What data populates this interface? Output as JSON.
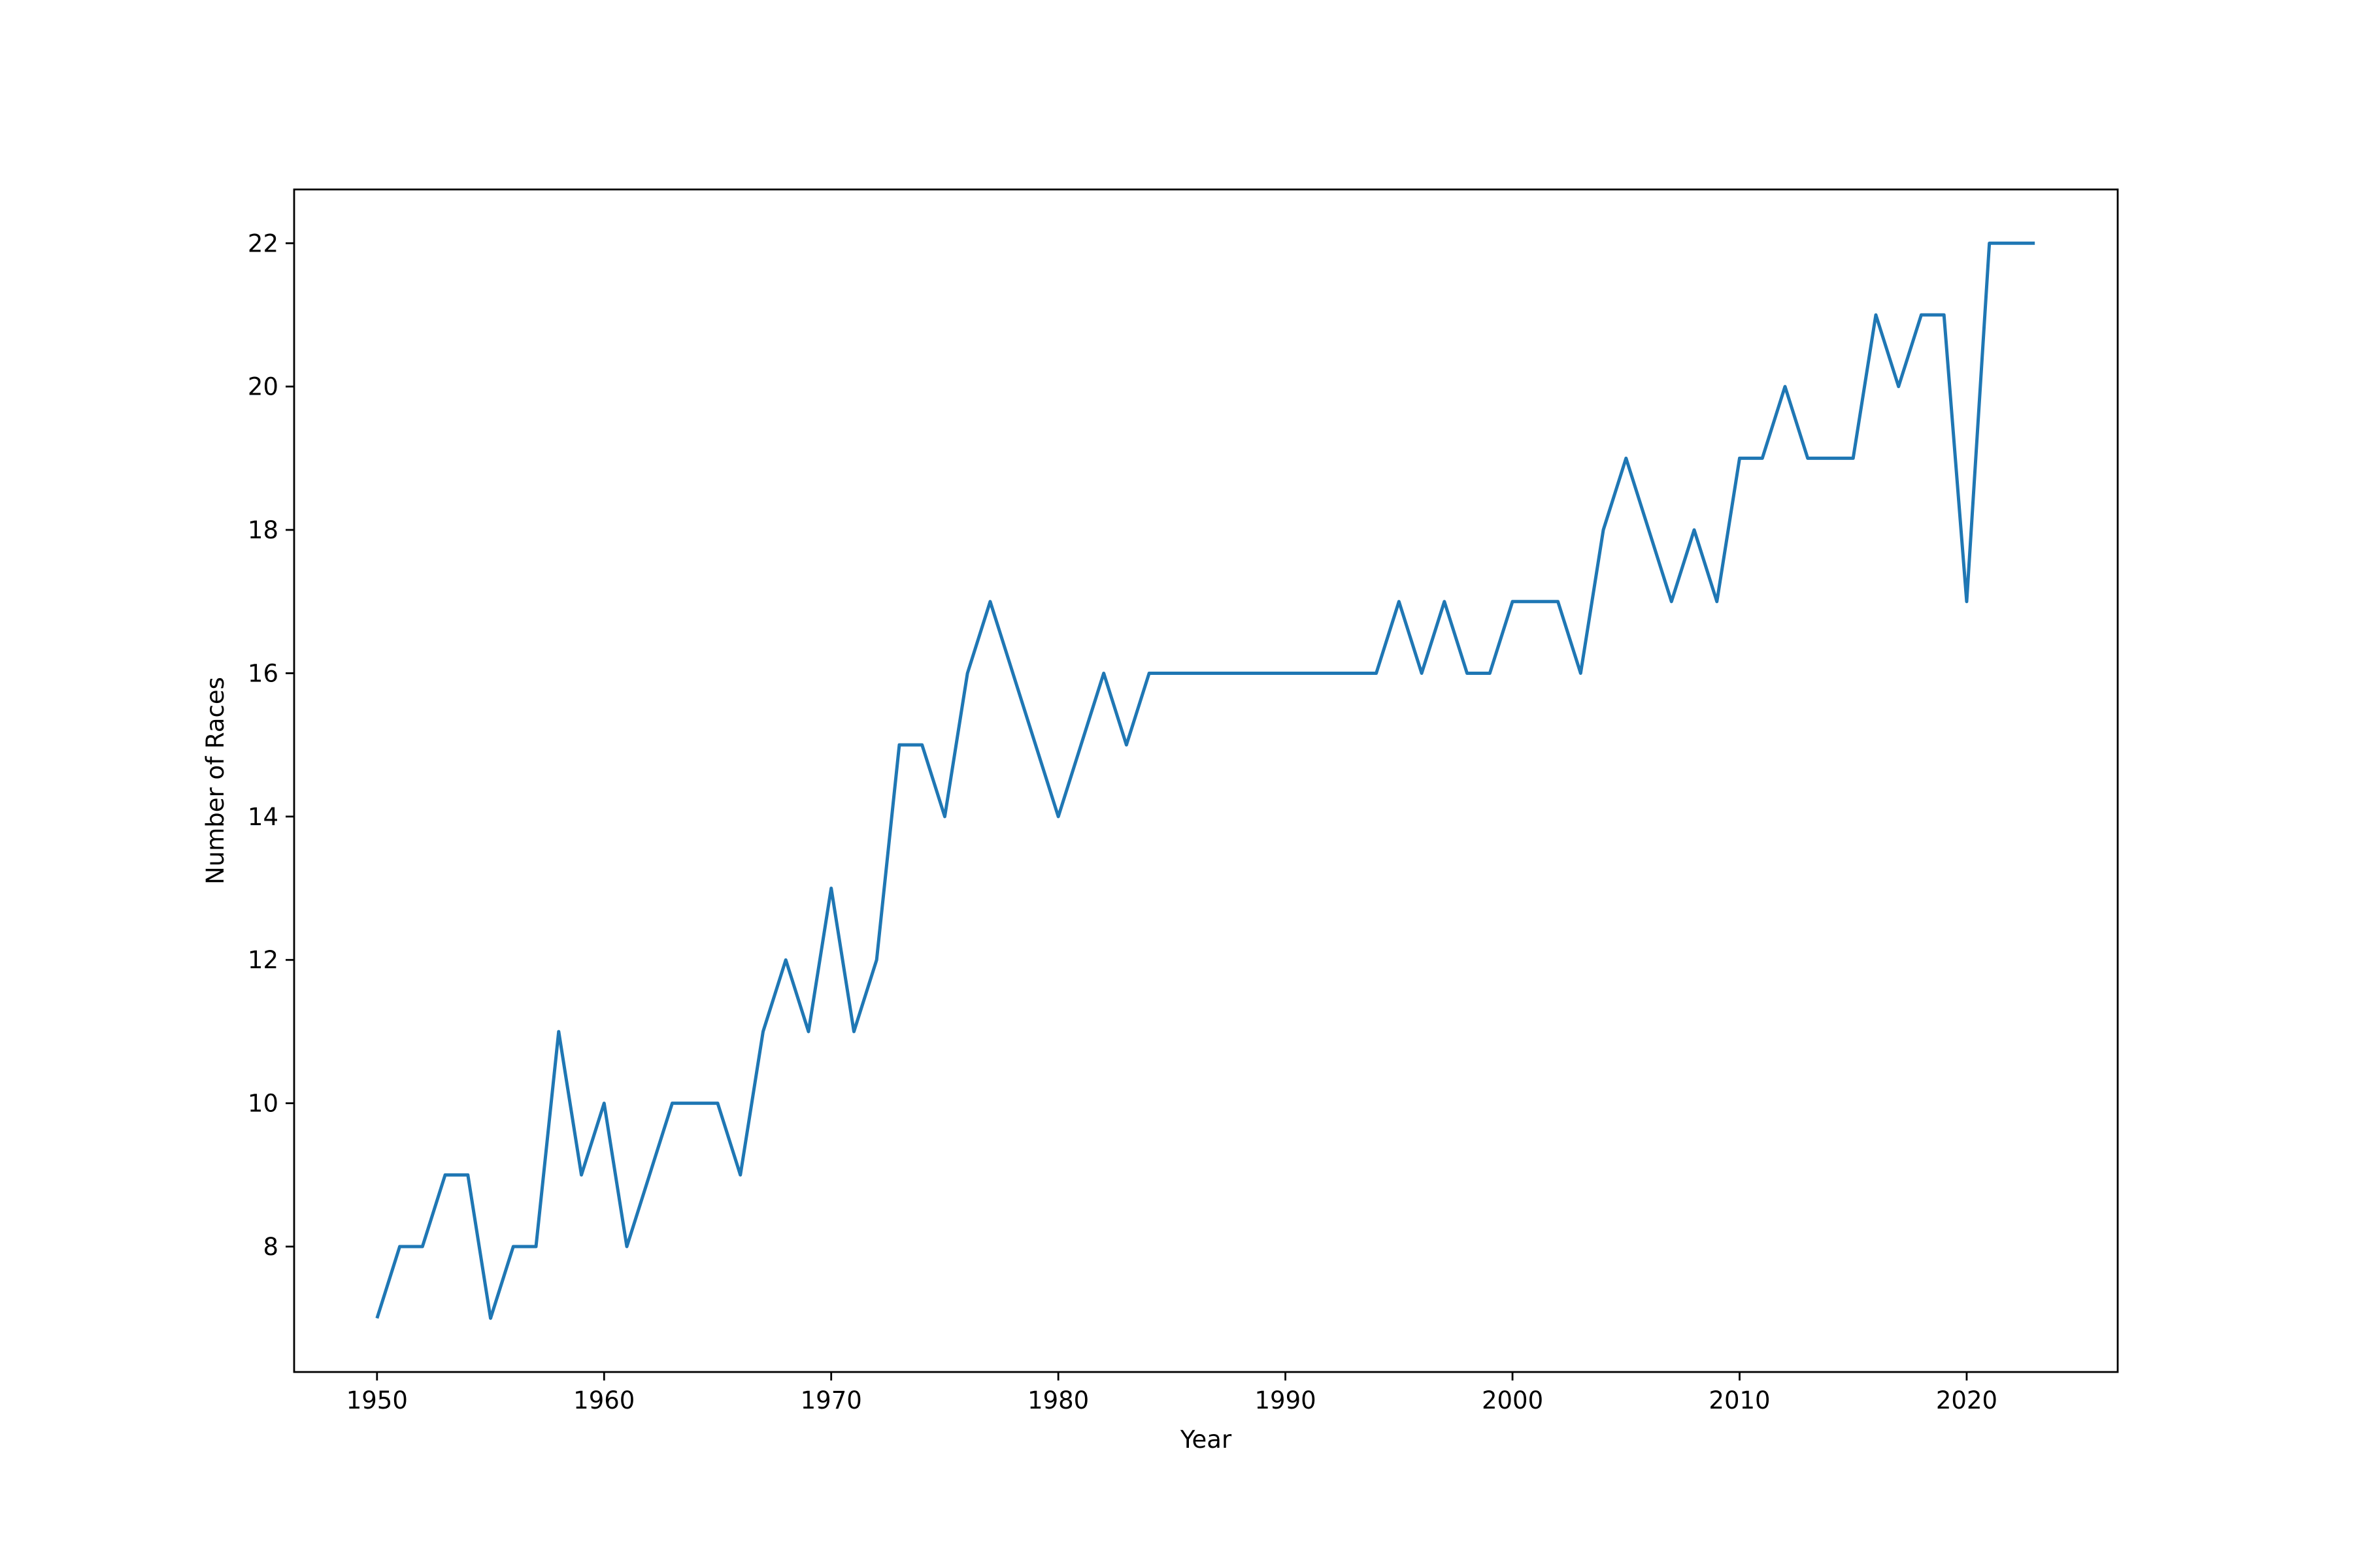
{
  "chart_data": {
    "type": "line",
    "title": "",
    "xlabel": "Year",
    "ylabel": "Number of Races",
    "xlim": [
      1946.35,
      2026.65
    ],
    "ylim": [
      6.25,
      22.75
    ],
    "x_ticks": [
      1950,
      1960,
      1970,
      1980,
      1990,
      2000,
      2010,
      2020
    ],
    "y_ticks": [
      8,
      10,
      12,
      14,
      16,
      18,
      20,
      22
    ],
    "grid": false,
    "legend": "none",
    "line_color": "#1f77b4",
    "x": [
      1950,
      1951,
      1952,
      1953,
      1954,
      1955,
      1956,
      1957,
      1958,
      1959,
      1960,
      1961,
      1962,
      1963,
      1964,
      1965,
      1966,
      1967,
      1968,
      1969,
      1970,
      1971,
      1972,
      1973,
      1974,
      1975,
      1976,
      1977,
      1978,
      1979,
      1980,
      1981,
      1982,
      1983,
      1984,
      1985,
      1986,
      1987,
      1988,
      1989,
      1990,
      1991,
      1992,
      1993,
      1994,
      1995,
      1996,
      1997,
      1998,
      1999,
      2000,
      2001,
      2002,
      2003,
      2004,
      2005,
      2006,
      2007,
      2008,
      2009,
      2010,
      2011,
      2012,
      2013,
      2014,
      2015,
      2016,
      2017,
      2018,
      2019,
      2020,
      2021,
      2022,
      2023
    ],
    "series": [
      {
        "values": [
          7,
          8,
          8,
          9,
          9,
          7,
          8,
          8,
          11,
          9,
          10,
          8,
          9,
          10,
          10,
          10,
          9,
          11,
          12,
          11,
          13,
          11,
          12,
          15,
          15,
          14,
          16,
          17,
          16,
          15,
          14,
          15,
          16,
          15,
          16,
          16,
          16,
          16,
          16,
          16,
          16,
          16,
          16,
          16,
          16,
          17,
          16,
          17,
          16,
          16,
          17,
          17,
          17,
          16,
          18,
          19,
          18,
          17,
          18,
          17,
          19,
          19,
          20,
          19,
          19,
          19,
          21,
          20,
          21,
          21,
          17,
          22,
          22,
          22
        ]
      }
    ]
  }
}
